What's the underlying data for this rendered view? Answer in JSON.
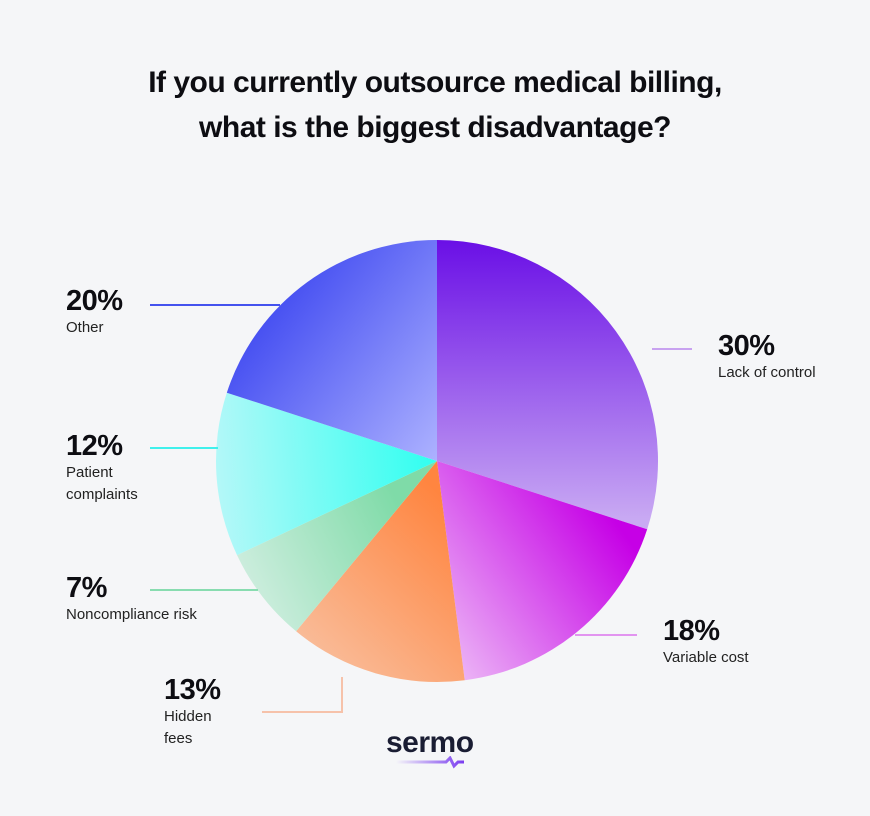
{
  "chart_data": {
    "type": "pie",
    "title": "If you currently outsource medical billing, what is the biggest disadvantage?",
    "title_lines": [
      "If you currently outsource medical billing,",
      "what is the biggest disadvantage?"
    ],
    "start": "top",
    "direction": "clockwise",
    "slices": [
      {
        "label": "Lack of control",
        "value": 30,
        "pct_label": "30%",
        "colors": [
          "#6a0fe6",
          "#c9aaf3"
        ]
      },
      {
        "label": "Variable cost",
        "value": 18,
        "pct_label": "18%",
        "colors": [
          "#c600e6",
          "#ecb8f6"
        ]
      },
      {
        "label": "Hidden fees",
        "value": 13,
        "pct_label": "13%",
        "colors": [
          "#ff8540",
          "#f8c4a6"
        ]
      },
      {
        "label": "Noncompliance risk",
        "value": 7,
        "pct_label": "7%",
        "colors": [
          "#7fdba8",
          "#d0eee0"
        ]
      },
      {
        "label": "Patient complaints",
        "value": 12,
        "pct_label": "12%",
        "colors": [
          "#2ffff0",
          "#b4f8f8"
        ]
      },
      {
        "label": "Other",
        "value": 20,
        "pct_label": "20%",
        "colors": [
          "#3a44f0",
          "#adb2ff"
        ]
      }
    ],
    "leader_colors": [
      "#c8a2f0",
      "#e294f0",
      "#f6c2aa",
      "#88dcb0",
      "#40f0ec",
      "#4452ee"
    ]
  },
  "branding": {
    "logo_text": "sermo",
    "logo_accent": "#7a3cf0"
  }
}
